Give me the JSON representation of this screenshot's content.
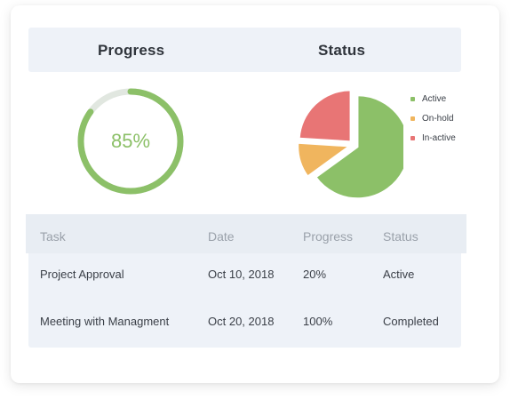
{
  "headers": {
    "progress": "Progress",
    "status": "Status"
  },
  "progress": {
    "value": 85,
    "label": "85%",
    "colors": {
      "fill": "#8cc068",
      "track": "#e1e7e0"
    }
  },
  "status_chart": {
    "legend": [
      {
        "label": "Active",
        "color": "#8cc068"
      },
      {
        "label": "On-hold",
        "color": "#f0b55e"
      },
      {
        "label": "In-active",
        "color": "#e87575"
      }
    ]
  },
  "chart_data": {
    "type": "pie",
    "title": "Status",
    "categories": [
      "Active",
      "On-hold",
      "In-active"
    ],
    "values": [
      65,
      11,
      24
    ],
    "colors": [
      "#8cc068",
      "#f0b55e",
      "#e87575"
    ],
    "legend": "right"
  },
  "table": {
    "columns": [
      "Task",
      "Date",
      "Progress",
      "Status"
    ],
    "rows": [
      {
        "task": "Project Approval",
        "date": "Oct 10, 2018",
        "progress": "20%",
        "status": "Active"
      },
      {
        "task": "Meeting with Managment",
        "date": "Oct 20, 2018",
        "progress": "100%",
        "status": "Completed"
      }
    ]
  }
}
